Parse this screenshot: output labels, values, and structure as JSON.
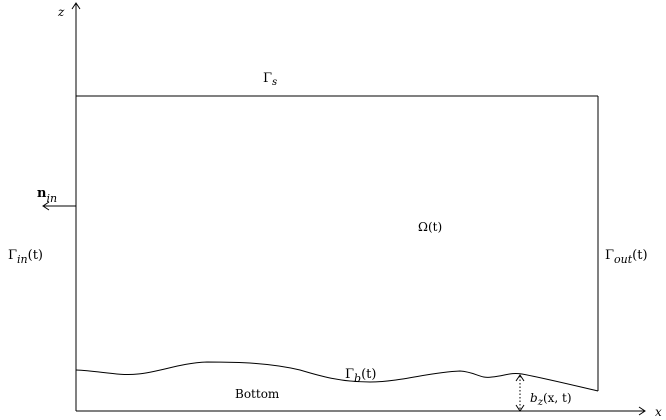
{
  "axes": {
    "x_label": "x",
    "z_label": "z"
  },
  "labels": {
    "gamma_s": "Γs",
    "omega": "Ω(t)",
    "normal_in": "nin",
    "gamma_in": "Γin(t)",
    "gamma_out": "Γout(t)",
    "gamma_b": "Γb(t)",
    "bottom": "Bottom",
    "bz": "bz(x, t)"
  },
  "parts": {
    "gamma_s": {
      "main": "Γ",
      "sub": "s"
    },
    "omega": {
      "main": "Ω(t)"
    },
    "normal_in": {
      "main": "n",
      "sub": "in"
    },
    "gamma_in": {
      "main": "Γ",
      "sub": "in",
      "tail": "(t)"
    },
    "gamma_out": {
      "main": "Γ",
      "sub": "out",
      "tail": "(t)"
    },
    "gamma_b": {
      "main": "Γ",
      "sub": "b",
      "tail": "(t)"
    },
    "bz": {
      "main": "b",
      "sub": "z",
      "tail": "(x, t)"
    }
  },
  "colors": {
    "stroke": "#000000",
    "background": "#ffffff"
  }
}
